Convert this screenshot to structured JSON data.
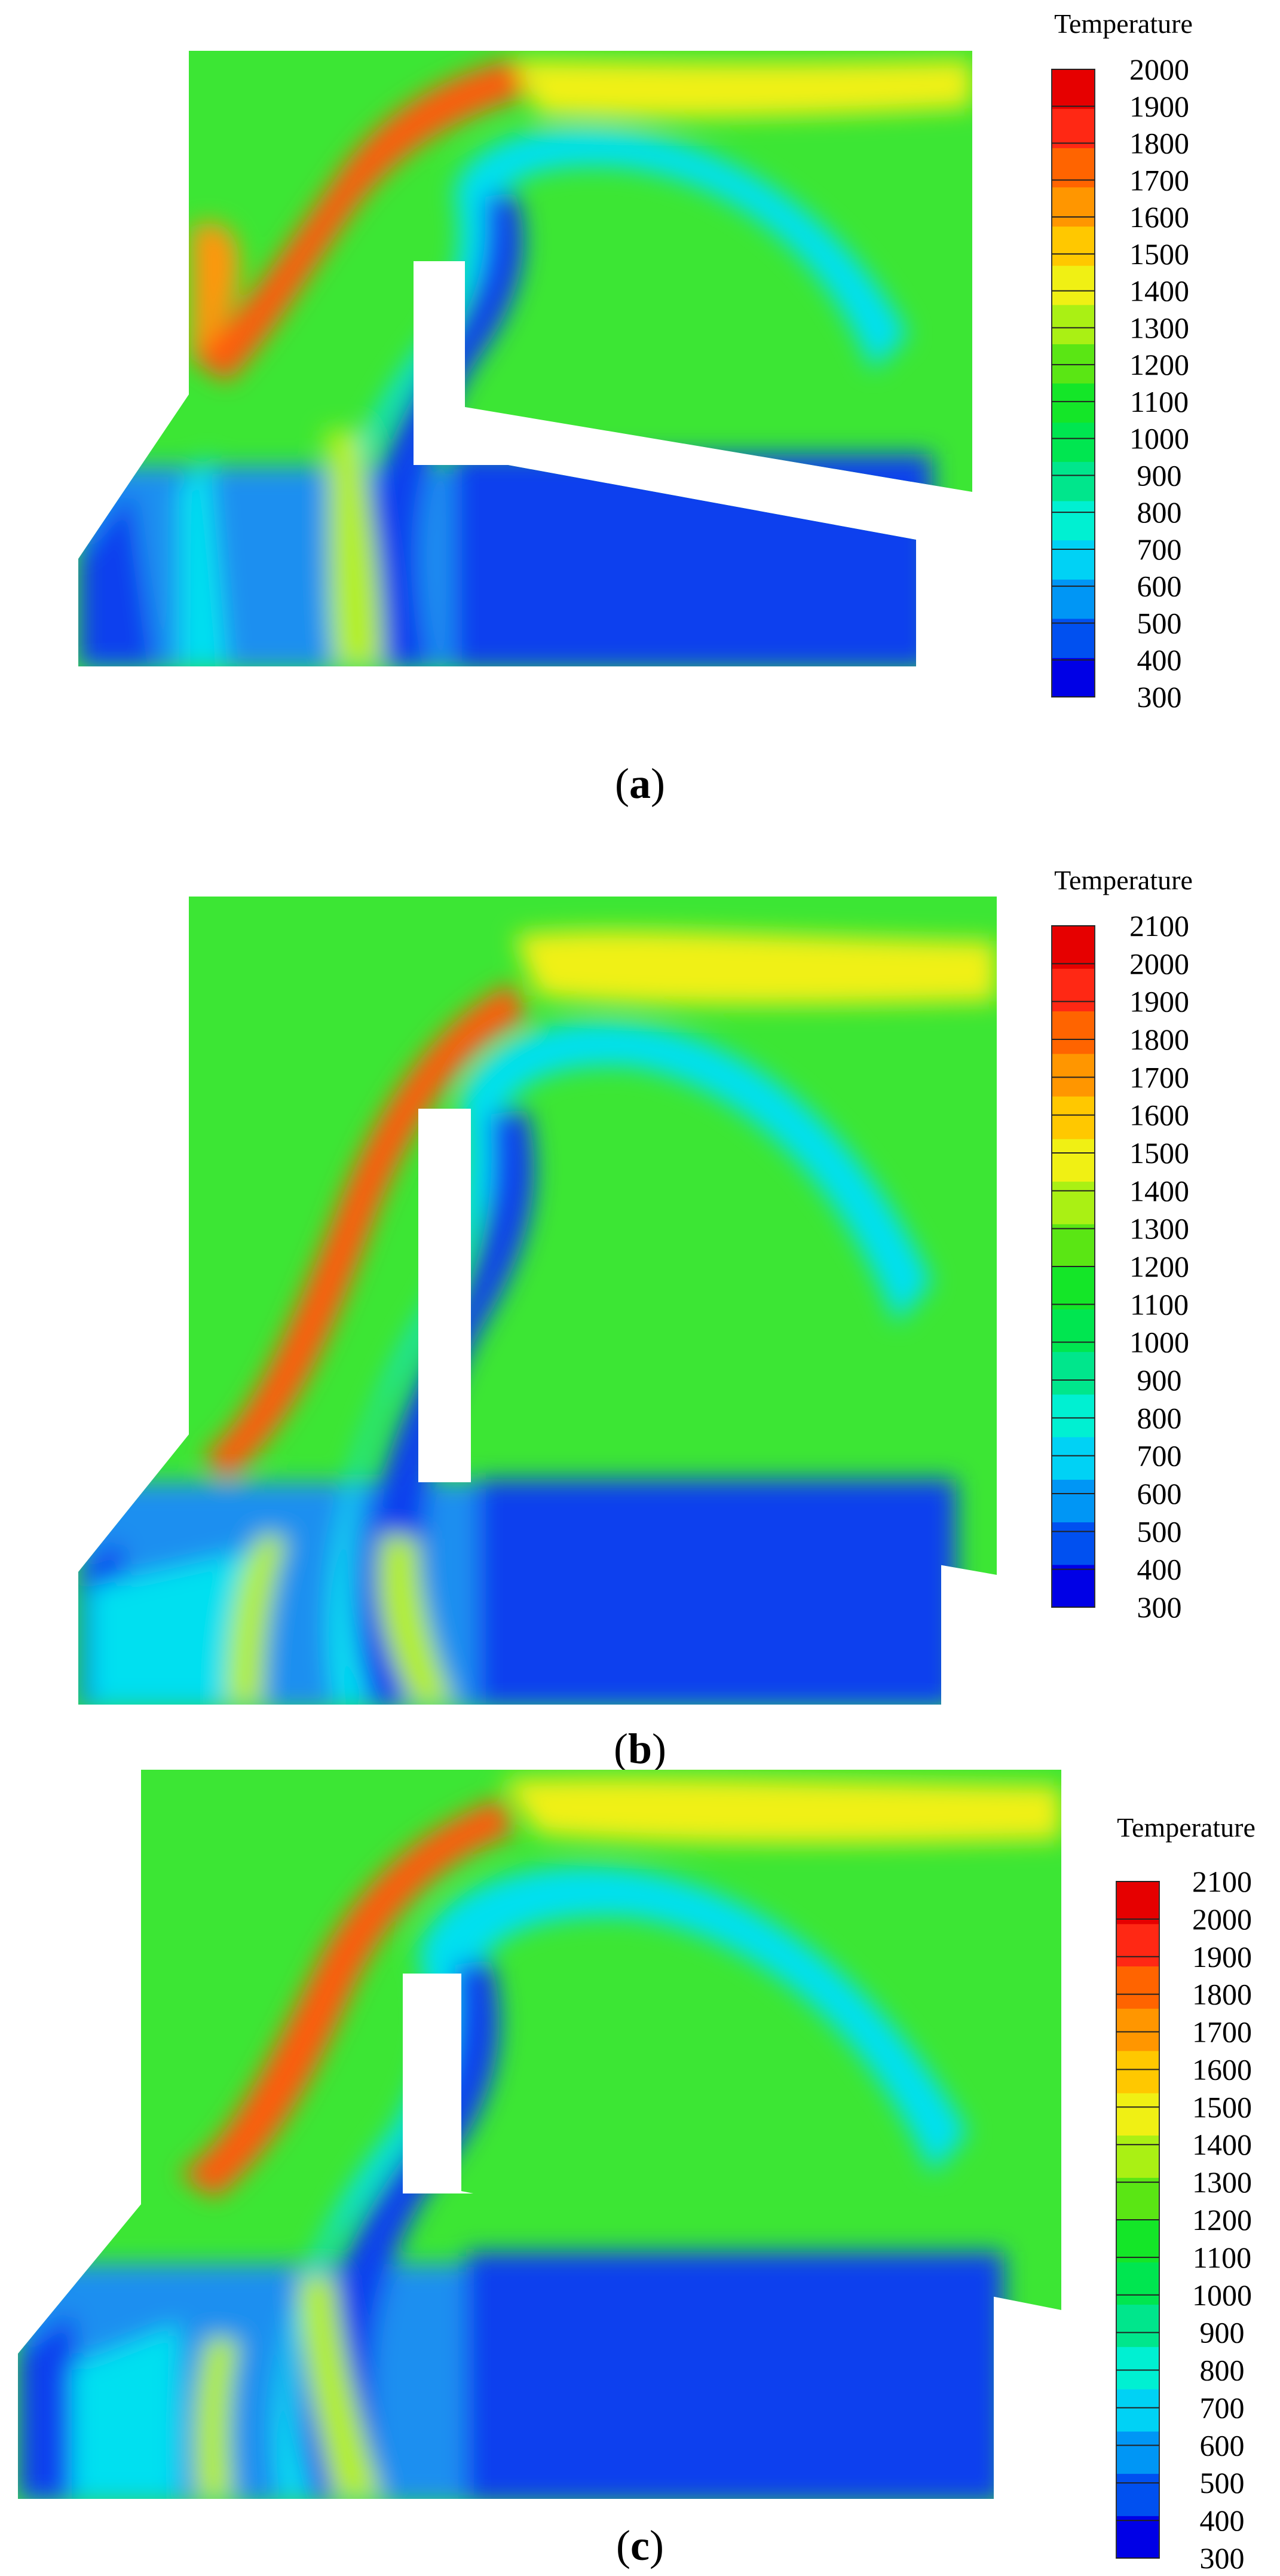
{
  "panels": [
    {
      "id": "a",
      "caption": {
        "open": "(",
        "letter": "a",
        "close": ")"
      },
      "legend": {
        "title": "Temperature",
        "ticks": [
          "2000",
          "1900",
          "1800",
          "1700",
          "1600",
          "1500",
          "1400",
          "1300",
          "1200",
          "1100",
          "1000",
          "900",
          "800",
          "700",
          "600",
          "500",
          "400",
          "300"
        ],
        "min": 300,
        "max": 2000
      }
    },
    {
      "id": "b",
      "caption": {
        "open": "(",
        "letter": "b",
        "close": ")"
      },
      "legend": {
        "title": "Temperature",
        "ticks": [
          "2100",
          "2000",
          "1900",
          "1800",
          "1700",
          "1600",
          "1500",
          "1400",
          "1300",
          "1200",
          "1100",
          "1000",
          "900",
          "800",
          "700",
          "600",
          "500",
          "400",
          "300"
        ],
        "min": 300,
        "max": 2100
      }
    },
    {
      "id": "c",
      "caption": {
        "open": "(",
        "letter": "c",
        "close": ")"
      },
      "legend": {
        "title": "Temperature",
        "ticks": [
          "2100",
          "2000",
          "1900",
          "1800",
          "1700",
          "1600",
          "1500",
          "1400",
          "1300",
          "1200",
          "1100",
          "1000",
          "900",
          "800",
          "700",
          "600",
          "500",
          "400",
          "300"
        ],
        "min": 300,
        "max": 2100
      }
    }
  ],
  "colors": {
    "rainbow": [
      "#0000e6",
      "#0050f0",
      "#0096f5",
      "#00d2f5",
      "#00f0d2",
      "#00e68c",
      "#00e650",
      "#14e628",
      "#5ae614",
      "#aaf014",
      "#f0f014",
      "#ffc800",
      "#ff9600",
      "#ff6400",
      "#ff2814",
      "#e60000"
    ],
    "low": "#1140ee",
    "cool": "#1a8ff0",
    "cyan": "#00e0f0",
    "mid": "#2ee64a",
    "green": "#3ce634",
    "yellowgreen": "#b4f020",
    "yellow": "#f0f014",
    "orange": "#ff9610",
    "hot": "#ff5a0a"
  }
}
